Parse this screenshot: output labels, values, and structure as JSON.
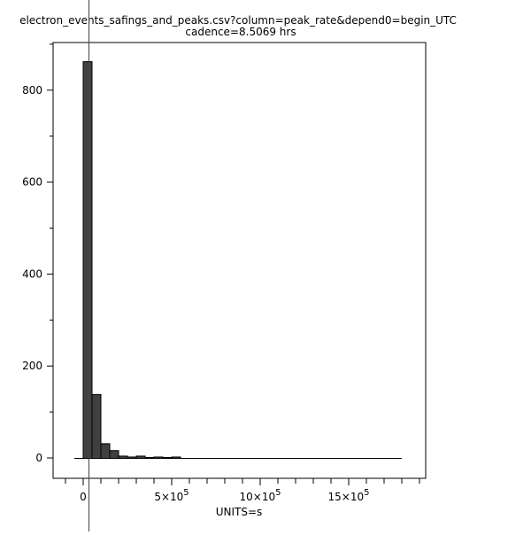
{
  "chart_data": {
    "type": "bar",
    "title": "electron_events_safings_and_peaks.csv?column=peak_rate&depend0=begin_UTC",
    "subtitle": "cadence=8.5069 hrs",
    "xlabel": "UNITS=s",
    "ylabel": "",
    "xlim": [
      -100000,
      1900000
    ],
    "ylim": [
      -40,
      907
    ],
    "bin_width": 50000,
    "bin_starts": [
      0,
      50000,
      100000,
      150000,
      200000,
      250000,
      300000,
      350000,
      400000,
      450000,
      500000,
      550000
    ],
    "values": [
      862,
      138,
      31,
      16,
      4,
      2,
      4,
      1,
      2,
      1,
      2,
      0
    ],
    "baseline_extent": [
      -50000,
      1800000
    ],
    "x_ticks": [
      {
        "value": 0,
        "label": "0"
      },
      {
        "value": 500000,
        "label": "5×10",
        "exp": "5"
      },
      {
        "value": 1000000,
        "label": "10×10",
        "exp": "5"
      },
      {
        "value": 1500000,
        "label": "15×10",
        "exp": "5"
      }
    ],
    "y_ticks": [
      {
        "value": 0,
        "label": "0"
      },
      {
        "value": 200,
        "label": "200"
      },
      {
        "value": 400,
        "label": "400"
      },
      {
        "value": 600,
        "label": "600"
      },
      {
        "value": 800,
        "label": "800"
      }
    ],
    "grid": false,
    "legend": "none",
    "colors": {
      "bar": "#404040",
      "axis": "#000000"
    }
  }
}
